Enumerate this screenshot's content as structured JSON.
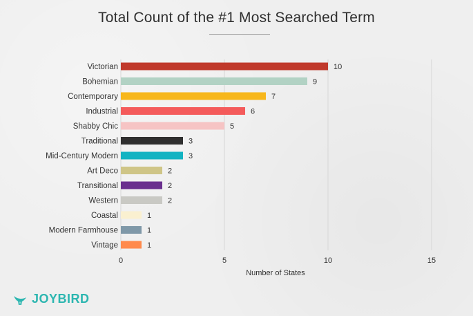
{
  "title": "Total Count of the #1 Most Searched Term",
  "brand": "JOYBIRD",
  "colors": {
    "brand": "#2cb6b0"
  },
  "chart_data": {
    "type": "bar",
    "orientation": "horizontal",
    "categories": [
      "Victorian",
      "Bohemian",
      "Contemporary",
      "Industrial",
      "Shabby Chic",
      "Traditional",
      "Mid-Century Modern",
      "Art Deco",
      "Transitional",
      "Western",
      "Coastal",
      "Modern Farmhouse",
      "Vintage"
    ],
    "values": [
      10,
      9,
      7,
      6,
      5,
      3,
      3,
      2,
      2,
      2,
      1,
      1,
      1
    ],
    "bar_colors": [
      "#c0392b",
      "#b2d2c4",
      "#f7b71c",
      "#f45b5b",
      "#f6c4c4",
      "#2f2f2f",
      "#12b3c2",
      "#cfc587",
      "#6a2f8e",
      "#c9c9c4",
      "#faf0d0",
      "#7f98a8",
      "#ff8a4c"
    ],
    "xlabel": "Number of States",
    "ylabel": "",
    "xlim": [
      0,
      15
    ],
    "xticks": [
      0,
      5,
      10,
      15
    ],
    "grid": true,
    "data_labels": true
  }
}
